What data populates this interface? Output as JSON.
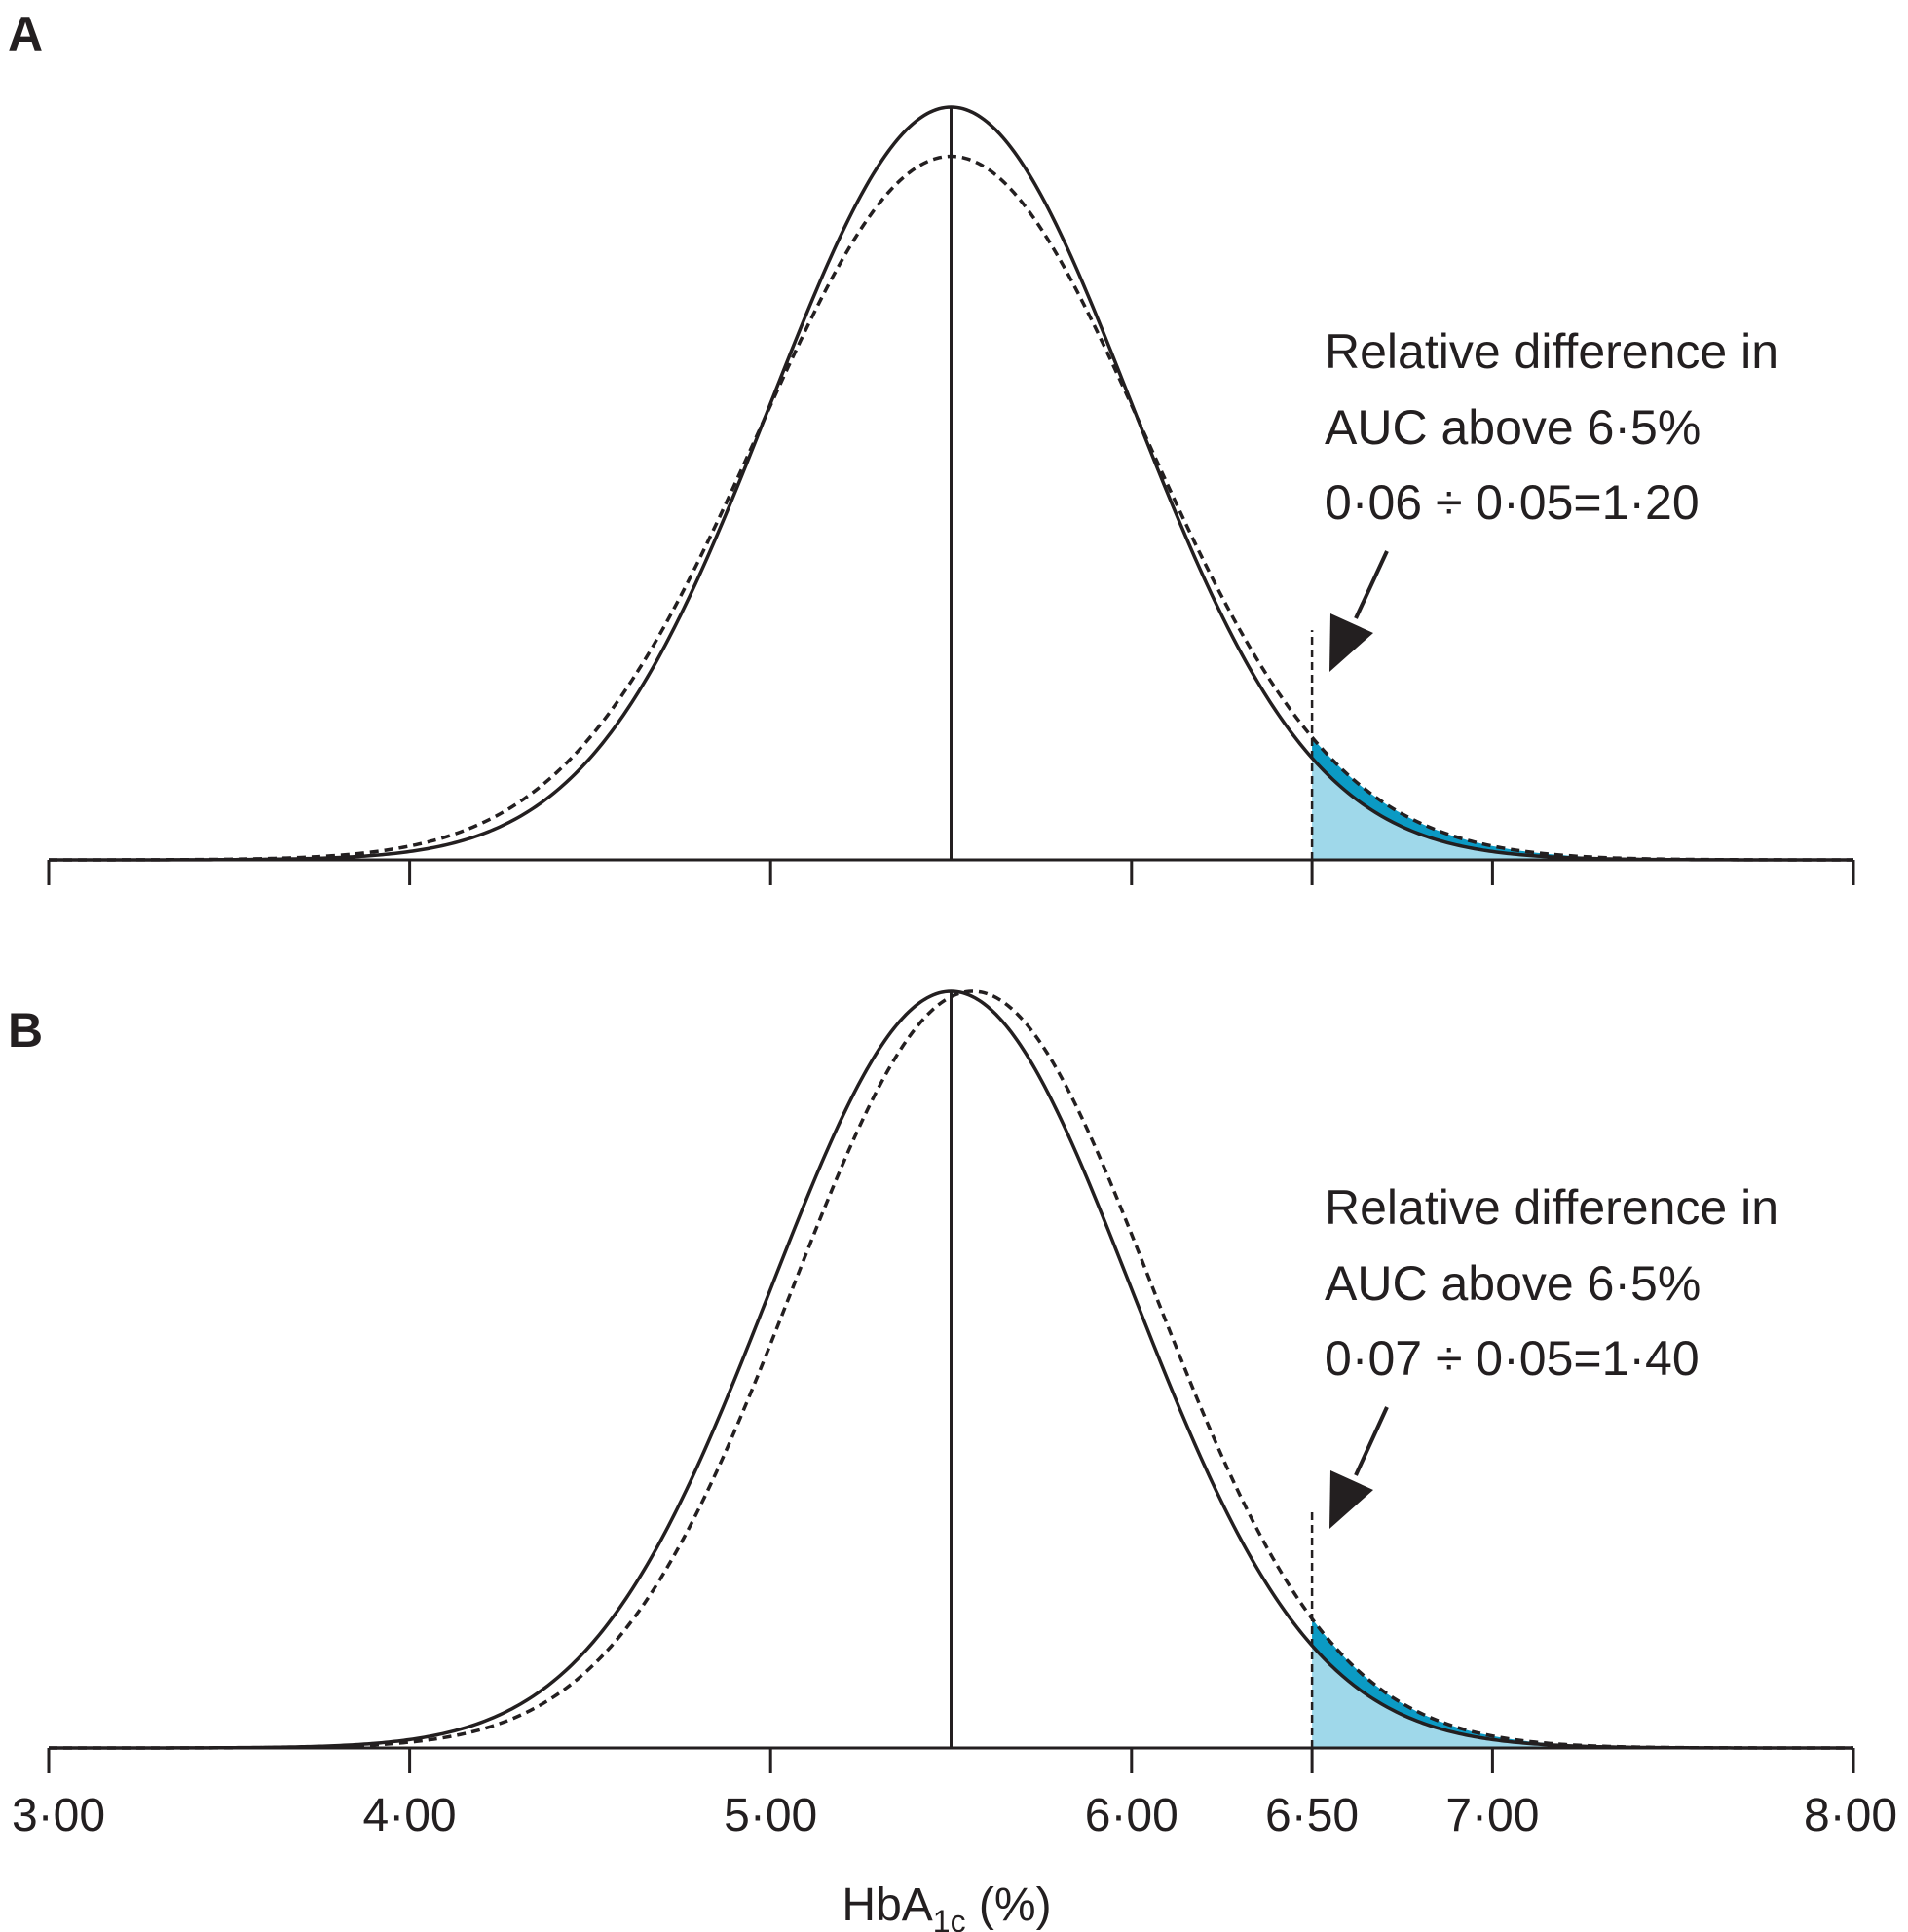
{
  "chart_data": [
    {
      "type": "area",
      "panel_label": "A",
      "annotation_lines": [
        "Relative difference in",
        "AUC above 6·5%",
        "0·06 ÷ 0·05=1·20"
      ],
      "xlim": [
        3.0,
        8.0
      ],
      "threshold": 6.5,
      "series": [
        {
          "style": "solid",
          "mean": 5.5,
          "sd": 0.5,
          "auc_above_threshold": 0.05
        },
        {
          "style": "dashed",
          "mean": 5.5,
          "sd": 0.535,
          "auc_above_threshold": 0.06
        }
      ]
    },
    {
      "type": "area",
      "panel_label": "B",
      "annotation_lines": [
        "Relative difference in",
        "AUC above 6·5%",
        "0·07 ÷ 0·05=1·40"
      ],
      "xlim": [
        3.0,
        8.0
      ],
      "threshold": 6.5,
      "series": [
        {
          "style": "solid",
          "mean": 5.5,
          "sd": 0.5,
          "auc_above_threshold": 0.05
        },
        {
          "style": "dashed",
          "mean": 5.56,
          "sd": 0.5,
          "auc_above_threshold": 0.07
        }
      ]
    }
  ],
  "x_axis": {
    "ticks": [
      3.0,
      4.0,
      5.0,
      6.0,
      6.5,
      7.0,
      8.0
    ],
    "tick_labels": [
      "3·00",
      "4·00",
      "5·00",
      "6·00",
      "6·50",
      "7·00",
      "8·00"
    ],
    "title_main": "HbA",
    "title_subscript": "1c",
    "title_suffix": " (%)"
  },
  "colors": {
    "light_fill": "#9fd8ea",
    "dark_fill": "#0b9ac4",
    "ink": "#231f20"
  }
}
